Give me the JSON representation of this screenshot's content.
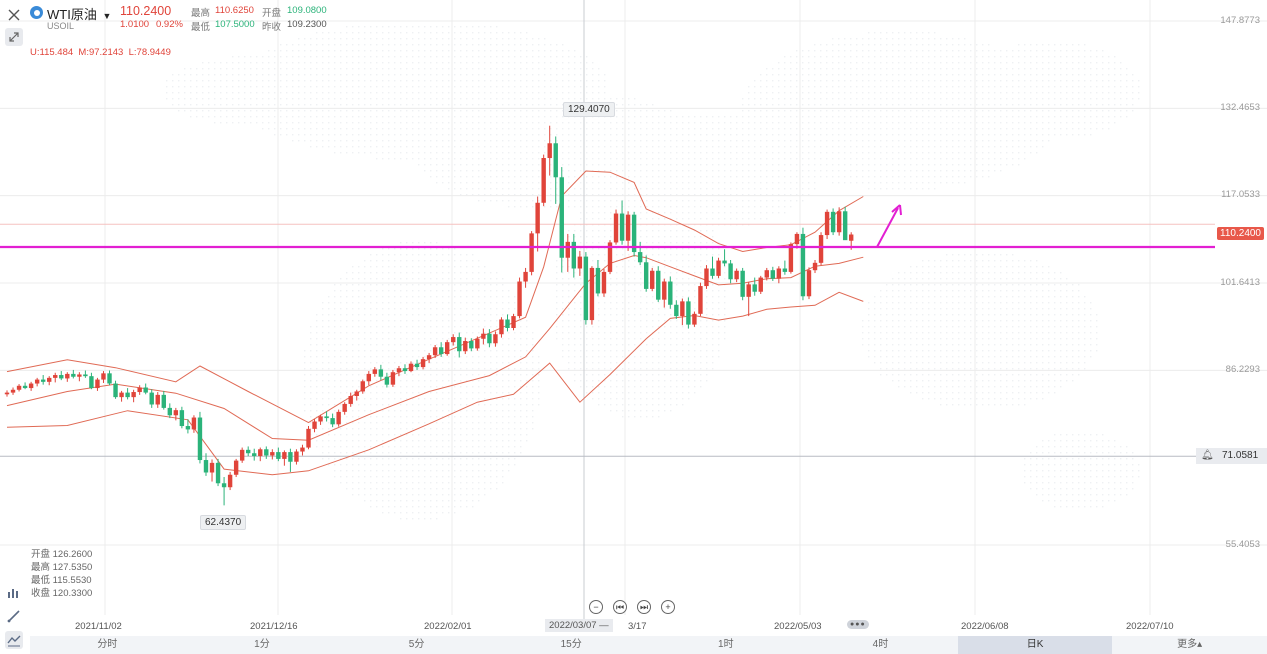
{
  "header": {
    "symbol_name": "WTI原油",
    "symbol_code": "USOIL",
    "last_price": "110.2400",
    "change": "1.0100",
    "change_pct": "0.92%",
    "high_label": "最高",
    "high_value": "110.6250",
    "open_label": "开盘",
    "open_value": "109.0800",
    "low_label": "最低",
    "low_value": "107.5000",
    "prev_close_label": "昨收",
    "prev_close_value": "109.2300"
  },
  "indicator": {
    "upper": "U:115.484",
    "middle": "M:97.2143",
    "lower": "L:78.9449"
  },
  "bar_info": {
    "open": "开盘 126.2600",
    "high": "最高 127.5350",
    "low": "最低 115.5530",
    "close": "收盘 120.3300"
  },
  "annotations": {
    "max_label": "129.4070",
    "min_label": "62.4370",
    "current_price_tag": "110.2400",
    "alert_line_price": "71.0581"
  },
  "axes": {
    "y_ticks": [
      "147.8773",
      "132.4653",
      "117.0533",
      "101.6413",
      "86.2293",
      "55.4053"
    ],
    "x_ticks": [
      "2021/11/02",
      "2021/12/16",
      "2022/02/01",
      "3/17",
      "2022/05/03",
      "2022/06/08",
      "2022/07/10"
    ],
    "crosshair_date": "2022/03/07 —"
  },
  "timeframes": [
    {
      "label": "分时",
      "active": false
    },
    {
      "label": "1分",
      "active": false
    },
    {
      "label": "5分",
      "active": false
    },
    {
      "label": "15分",
      "active": false
    },
    {
      "label": "1时",
      "active": false
    },
    {
      "label": "4时",
      "active": false
    },
    {
      "label": "日K",
      "active": true
    },
    {
      "label": "更多▴",
      "active": false
    }
  ],
  "colors": {
    "up": "#e0443a",
    "down": "#2bb37a",
    "boll": "#e06a55",
    "magenta_line": "#e21fd2",
    "price_tag_bg": "#e8584a",
    "grid": "#ececec"
  },
  "chart_data": {
    "type": "candlestick",
    "title": "WTI原油 USOIL 日K",
    "ylim": [
      49,
      152
    ],
    "y_ticks": [
      147.8773,
      132.4653,
      117.0533,
      101.6413,
      86.2293,
      55.4053
    ],
    "indicator": "BOLL",
    "highest": 129.407,
    "lowest": 62.437,
    "horizontal_levels": {
      "magenta_resistance": 108.0,
      "alert": 71.0581
    },
    "candles": [
      [
        82.0,
        82.7,
        81.6,
        82.3
      ],
      [
        82.3,
        83.2,
        81.9,
        82.8
      ],
      [
        82.8,
        83.8,
        82.5,
        83.5
      ],
      [
        83.5,
        84.1,
        82.9,
        83.1
      ],
      [
        83.1,
        84.2,
        82.6,
        83.9
      ],
      [
        83.9,
        84.9,
        83.4,
        84.6
      ],
      [
        84.6,
        85.4,
        83.7,
        84.2
      ],
      [
        84.2,
        85.2,
        83.6,
        84.9
      ],
      [
        84.9,
        85.8,
        84.1,
        85.4
      ],
      [
        85.4,
        86.1,
        84.5,
        84.8
      ],
      [
        84.8,
        85.9,
        84.2,
        85.6
      ],
      [
        85.6,
        86.3,
        84.8,
        85.1
      ],
      [
        85.1,
        85.9,
        84.3,
        85.5
      ],
      [
        85.5,
        86.2,
        84.9,
        85.2
      ],
      [
        85.2,
        85.8,
        82.9,
        83.1
      ],
      [
        83.1,
        84.9,
        82.6,
        84.6
      ],
      [
        84.6,
        86.1,
        84.0,
        85.7
      ],
      [
        85.7,
        86.2,
        83.6,
        83.9
      ],
      [
        83.9,
        84.4,
        81.2,
        81.5
      ],
      [
        81.5,
        82.6,
        80.7,
        82.3
      ],
      [
        82.3,
        83.1,
        81.1,
        81.5
      ],
      [
        81.5,
        82.8,
        80.6,
        82.4
      ],
      [
        82.4,
        83.6,
        81.9,
        83.2
      ],
      [
        83.2,
        83.9,
        82.0,
        82.3
      ],
      [
        82.3,
        82.9,
        79.6,
        80.2
      ],
      [
        80.2,
        82.4,
        79.6,
        81.9
      ],
      [
        81.9,
        82.6,
        79.3,
        79.6
      ],
      [
        79.6,
        80.4,
        77.8,
        78.3
      ],
      [
        78.3,
        79.6,
        77.4,
        79.2
      ],
      [
        79.2,
        79.8,
        76.0,
        76.4
      ],
      [
        76.4,
        77.6,
        75.1,
        75.8
      ],
      [
        75.8,
        78.3,
        75.2,
        77.9
      ],
      [
        77.9,
        78.9,
        69.8,
        70.4
      ],
      [
        70.4,
        71.6,
        67.6,
        68.2
      ],
      [
        68.2,
        70.5,
        66.6,
        69.9
      ],
      [
        69.9,
        70.6,
        65.8,
        66.3
      ],
      [
        66.3,
        67.4,
        62.4,
        65.6
      ],
      [
        65.6,
        68.3,
        65.1,
        67.8
      ],
      [
        67.8,
        70.6,
        67.4,
        70.3
      ],
      [
        70.3,
        72.6,
        69.9,
        72.2
      ],
      [
        72.2,
        72.8,
        71.1,
        71.6
      ],
      [
        71.6,
        72.4,
        70.3,
        71.1
      ],
      [
        71.1,
        72.6,
        70.2,
        72.3
      ],
      [
        72.3,
        72.8,
        70.6,
        71.2
      ],
      [
        71.2,
        72.3,
        70.5,
        71.8
      ],
      [
        71.8,
        72.6,
        70.2,
        70.6
      ],
      [
        70.6,
        72.1,
        69.4,
        71.8
      ],
      [
        71.8,
        72.4,
        68.3,
        70.1
      ],
      [
        70.1,
        72.3,
        69.6,
        71.9
      ],
      [
        71.9,
        73.1,
        71.2,
        72.6
      ],
      [
        72.6,
        76.4,
        72.3,
        75.9
      ],
      [
        75.9,
        77.6,
        75.3,
        77.2
      ],
      [
        77.2,
        78.4,
        76.6,
        78.1
      ],
      [
        78.1,
        79.0,
        77.2,
        77.8
      ],
      [
        77.8,
        78.6,
        76.2,
        76.7
      ],
      [
        76.7,
        79.3,
        76.3,
        78.9
      ],
      [
        78.9,
        80.6,
        78.4,
        80.3
      ],
      [
        80.3,
        82.3,
        79.8,
        81.7
      ],
      [
        81.7,
        82.8,
        80.9,
        82.5
      ],
      [
        82.5,
        84.6,
        82.1,
        84.3
      ],
      [
        84.3,
        86.1,
        83.6,
        85.6
      ],
      [
        85.6,
        86.8,
        85.1,
        86.4
      ],
      [
        86.4,
        87.2,
        84.5,
        85.1
      ],
      [
        85.1,
        85.8,
        83.2,
        83.7
      ],
      [
        83.7,
        86.3,
        83.3,
        85.9
      ],
      [
        85.9,
        87.0,
        85.2,
        86.6
      ],
      [
        86.6,
        87.3,
        85.6,
        86.1
      ],
      [
        86.1,
        87.8,
        85.9,
        87.4
      ],
      [
        87.4,
        88.1,
        86.3,
        86.8
      ],
      [
        86.8,
        88.6,
        86.4,
        88.2
      ],
      [
        88.2,
        89.3,
        87.5,
        88.9
      ],
      [
        88.9,
        90.7,
        88.4,
        90.3
      ],
      [
        90.3,
        91.2,
        88.6,
        89.1
      ],
      [
        89.1,
        91.6,
        88.8,
        91.2
      ],
      [
        91.2,
        92.6,
        90.6,
        92.1
      ],
      [
        92.1,
        92.9,
        88.5,
        89.6
      ],
      [
        89.6,
        92.0,
        89.1,
        91.4
      ],
      [
        91.4,
        91.9,
        89.6,
        90.1
      ],
      [
        90.1,
        92.2,
        89.7,
        91.8
      ],
      [
        91.8,
        93.6,
        90.8,
        92.7
      ],
      [
        92.7,
        93.5,
        90.3,
        91.0
      ],
      [
        91.0,
        93.1,
        90.4,
        92.6
      ],
      [
        92.6,
        95.6,
        92.0,
        95.2
      ],
      [
        95.2,
        96.1,
        93.1,
        93.7
      ],
      [
        93.7,
        96.2,
        93.3,
        95.8
      ],
      [
        95.8,
        102.6,
        95.4,
        101.9
      ],
      [
        101.9,
        104.3,
        100.8,
        103.6
      ],
      [
        103.6,
        110.8,
        103.0,
        110.4
      ],
      [
        110.4,
        116.9,
        107.2,
        115.8
      ],
      [
        115.8,
        124.3,
        115.2,
        123.7
      ],
      [
        123.7,
        129.4,
        120.6,
        126.3
      ],
      [
        126.3,
        127.5,
        115.6,
        120.3
      ],
      [
        120.3,
        122.1,
        103.5,
        106.1
      ],
      [
        106.1,
        110.3,
        103.6,
        108.9
      ],
      [
        108.9,
        110.3,
        102.6,
        104.2
      ],
      [
        104.2,
        107.3,
        102.9,
        106.3
      ],
      [
        106.3,
        107.1,
        94.3,
        95.1
      ],
      [
        95.1,
        104.6,
        94.3,
        104.3
      ],
      [
        104.3,
        105.7,
        99.3,
        99.8
      ],
      [
        99.8,
        104.1,
        99.2,
        103.6
      ],
      [
        103.6,
        109.2,
        103.2,
        108.8
      ],
      [
        108.8,
        114.6,
        108.4,
        113.9
      ],
      [
        113.9,
        116.2,
        108.4,
        109.1
      ],
      [
        109.1,
        114.3,
        107.3,
        113.7
      ],
      [
        113.7,
        114.2,
        106.3,
        107.1
      ],
      [
        107.1,
        108.9,
        104.8,
        105.3
      ],
      [
        105.3,
        106.5,
        100.1,
        100.6
      ],
      [
        100.6,
        104.3,
        100.2,
        103.8
      ],
      [
        103.8,
        104.6,
        98.3,
        98.7
      ],
      [
        98.7,
        102.4,
        97.3,
        101.9
      ],
      [
        101.9,
        102.8,
        97.1,
        97.8
      ],
      [
        97.8,
        98.6,
        95.3,
        95.8
      ],
      [
        95.8,
        98.9,
        94.2,
        98.4
      ],
      [
        98.4,
        99.1,
        93.6,
        94.3
      ],
      [
        94.3,
        96.6,
        93.9,
        96.2
      ],
      [
        96.2,
        101.7,
        95.8,
        101.1
      ],
      [
        101.1,
        104.8,
        100.6,
        104.2
      ],
      [
        104.2,
        106.3,
        102.4,
        102.9
      ],
      [
        102.9,
        106.1,
        102.5,
        105.6
      ],
      [
        105.6,
        107.6,
        104.6,
        105.1
      ],
      [
        105.1,
        105.7,
        101.6,
        102.3
      ],
      [
        102.3,
        104.2,
        101.8,
        103.8
      ],
      [
        103.8,
        104.3,
        98.6,
        99.2
      ],
      [
        99.2,
        101.8,
        95.8,
        101.4
      ],
      [
        101.4,
        102.6,
        99.4,
        100.1
      ],
      [
        100.1,
        102.9,
        99.7,
        102.6
      ],
      [
        102.6,
        104.3,
        102.1,
        103.9
      ],
      [
        103.9,
        104.5,
        102.0,
        102.4
      ],
      [
        102.4,
        104.6,
        101.6,
        104.2
      ],
      [
        104.2,
        105.6,
        103.1,
        103.6
      ],
      [
        103.6,
        108.8,
        103.3,
        108.5
      ],
      [
        108.5,
        110.6,
        107.7,
        110.3
      ],
      [
        110.3,
        111.4,
        98.6,
        99.3
      ],
      [
        99.3,
        104.4,
        98.8,
        103.9
      ],
      [
        103.9,
        105.7,
        103.4,
        105.2
      ],
      [
        105.2,
        110.6,
        104.8,
        110.1
      ],
      [
        110.1,
        114.6,
        109.4,
        114.2
      ],
      [
        114.2,
        114.8,
        110.1,
        110.6
      ],
      [
        110.6,
        115.0,
        110.0,
        114.3
      ],
      [
        114.3,
        115.1,
        109.4,
        109.2
      ],
      [
        109.1,
        110.6,
        107.5,
        110.2
      ]
    ],
    "boll_upper": [
      [
        0,
        86.0
      ],
      [
        10,
        88.1
      ],
      [
        18,
        86.7
      ],
      [
        28,
        84.2
      ],
      [
        32,
        87.0
      ],
      [
        40,
        82.5
      ],
      [
        50,
        77.0
      ],
      [
        60,
        83.5
      ],
      [
        70,
        88.2
      ],
      [
        80,
        92.8
      ],
      [
        86,
        95.6
      ],
      [
        89,
        104.5
      ],
      [
        92,
        117.0
      ],
      [
        96,
        121.4
      ],
      [
        100,
        121.2
      ],
      [
        104,
        119.4
      ],
      [
        106,
        114.7
      ],
      [
        110,
        112.9
      ],
      [
        114,
        111.0
      ],
      [
        118,
        108.6
      ],
      [
        122,
        107.2
      ],
      [
        126,
        107.9
      ],
      [
        130,
        108.4
      ],
      [
        134,
        110.6
      ],
      [
        138,
        114.4
      ],
      [
        142,
        116.9
      ]
    ],
    "boll_middle": [
      [
        0,
        80.0
      ],
      [
        10,
        82.5
      ],
      [
        18,
        83.8
      ],
      [
        28,
        82.2
      ],
      [
        36,
        79.5
      ],
      [
        44,
        74.2
      ],
      [
        50,
        73.9
      ],
      [
        60,
        78.4
      ],
      [
        70,
        82.5
      ],
      [
        80,
        85.3
      ],
      [
        86,
        88.6
      ],
      [
        90,
        93.6
      ],
      [
        96,
        101.6
      ],
      [
        100,
        105.1
      ],
      [
        104,
        106.5
      ],
      [
        106,
        106.1
      ],
      [
        110,
        104.5
      ],
      [
        114,
        102.9
      ],
      [
        118,
        101.3
      ],
      [
        122,
        101.6
      ],
      [
        126,
        102.4
      ],
      [
        130,
        102.6
      ],
      [
        134,
        104.6
      ],
      [
        138,
        105.1
      ],
      [
        142,
        106.2
      ]
    ],
    "boll_lower": [
      [
        0,
        76.2
      ],
      [
        10,
        76.5
      ],
      [
        20,
        79.1
      ],
      [
        30,
        77.5
      ],
      [
        36,
        68.8
      ],
      [
        44,
        67.8
      ],
      [
        50,
        68.5
      ],
      [
        60,
        72.2
      ],
      [
        70,
        76.8
      ],
      [
        78,
        80.6
      ],
      [
        84,
        82.0
      ],
      [
        90,
        87.5
      ],
      [
        95,
        80.6
      ],
      [
        100,
        85.5
      ],
      [
        106,
        91.8
      ],
      [
        110,
        95.4
      ],
      [
        114,
        95.9
      ],
      [
        118,
        95.1
      ],
      [
        122,
        95.8
      ],
      [
        126,
        97.0
      ],
      [
        130,
        97.4
      ],
      [
        134,
        97.7
      ],
      [
        138,
        100.0
      ],
      [
        142,
        98.4
      ]
    ]
  }
}
